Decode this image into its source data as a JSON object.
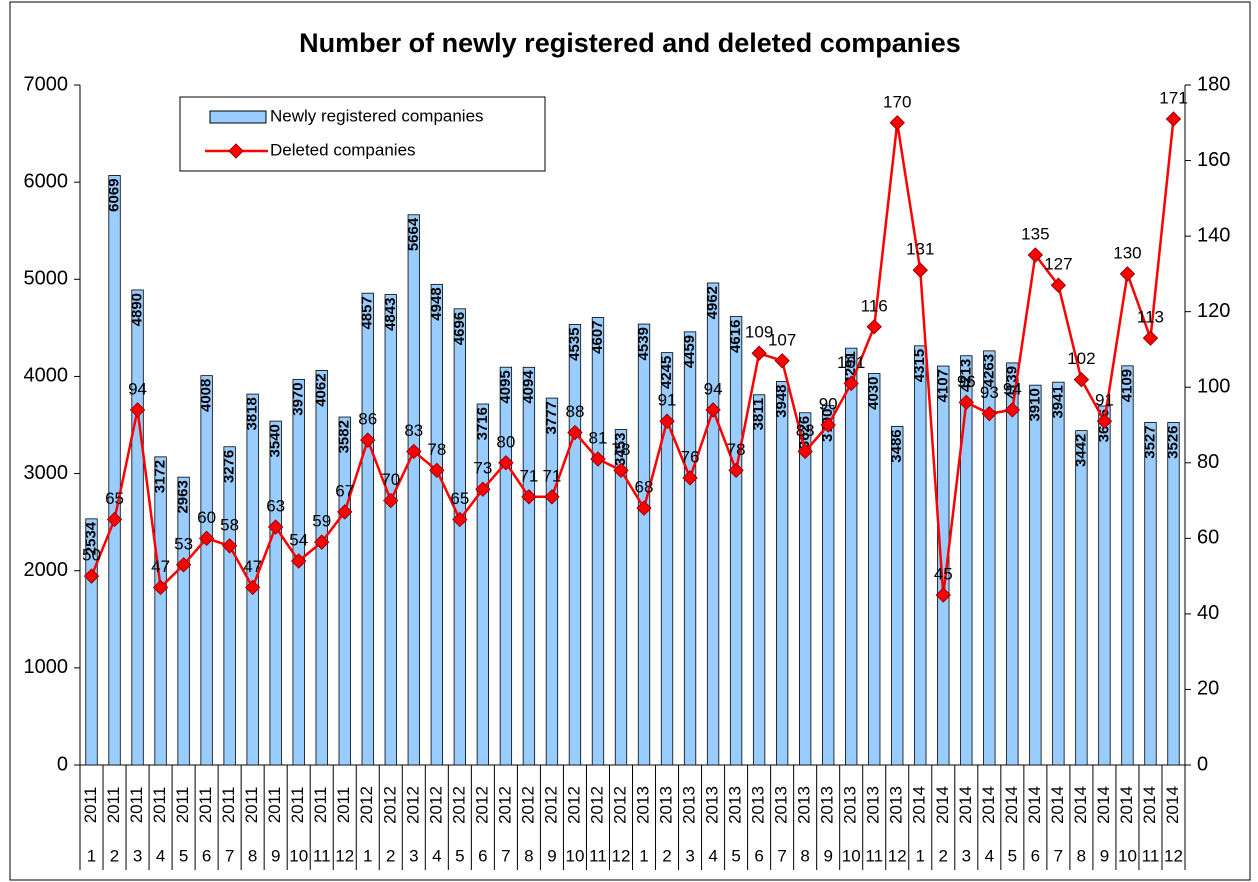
{
  "chart_data": {
    "type": "combo",
    "title": "Number of newly registered and deleted companies",
    "categories": [
      [
        "2011",
        "1"
      ],
      [
        "2011",
        "2"
      ],
      [
        "2011",
        "3"
      ],
      [
        "2011",
        "4"
      ],
      [
        "2011",
        "5"
      ],
      [
        "2011",
        "6"
      ],
      [
        "2011",
        "7"
      ],
      [
        "2011",
        "8"
      ],
      [
        "2011",
        "9"
      ],
      [
        "2011",
        "10"
      ],
      [
        "2011",
        "11"
      ],
      [
        "2011",
        "12"
      ],
      [
        "2012",
        "1"
      ],
      [
        "2012",
        "2"
      ],
      [
        "2012",
        "3"
      ],
      [
        "2012",
        "4"
      ],
      [
        "2012",
        "5"
      ],
      [
        "2012",
        "6"
      ],
      [
        "2012",
        "7"
      ],
      [
        "2012",
        "8"
      ],
      [
        "2012",
        "9"
      ],
      [
        "2012",
        "10"
      ],
      [
        "2012",
        "11"
      ],
      [
        "2012",
        "12"
      ],
      [
        "2013",
        "1"
      ],
      [
        "2013",
        "2"
      ],
      [
        "2013",
        "3"
      ],
      [
        "2013",
        "4"
      ],
      [
        "2013",
        "5"
      ],
      [
        "2013",
        "6"
      ],
      [
        "2013",
        "7"
      ],
      [
        "2013",
        "8"
      ],
      [
        "2013",
        "9"
      ],
      [
        "2013",
        "10"
      ],
      [
        "2013",
        "11"
      ],
      [
        "2013",
        "12"
      ],
      [
        "2014",
        "1"
      ],
      [
        "2014",
        "2"
      ],
      [
        "2014",
        "3"
      ],
      [
        "2014",
        "4"
      ],
      [
        "2014",
        "5"
      ],
      [
        "2014",
        "6"
      ],
      [
        "2014",
        "7"
      ],
      [
        "2014",
        "8"
      ],
      [
        "2014",
        "9"
      ],
      [
        "2014",
        "10"
      ],
      [
        "2014",
        "11"
      ],
      [
        "2014",
        "12"
      ]
    ],
    "series": [
      {
        "name": "Newly registered companies",
        "type": "bar",
        "color": "#99ccff",
        "values": [
          2534,
          6069,
          4890,
          3172,
          2963,
          4008,
          3276,
          3818,
          3540,
          3970,
          4062,
          3582,
          4857,
          4843,
          5664,
          4948,
          4696,
          3716,
          4095,
          4094,
          3777,
          4535,
          4607,
          3453,
          4539,
          4245,
          4459,
          4962,
          4616,
          3811,
          3948,
          3626,
          3700,
          4291,
          4030,
          3486,
          4315,
          4107,
          4213,
          4263,
          4139,
          3910,
          3941,
          3442,
          3696,
          4109,
          3527,
          3526
        ]
      },
      {
        "name": "Deleted companies",
        "type": "line",
        "axis": "y2",
        "color": "#ff0000",
        "values": [
          50,
          65,
          94,
          47,
          53,
          60,
          58,
          47,
          63,
          54,
          59,
          67,
          86,
          70,
          83,
          78,
          65,
          73,
          80,
          71,
          71,
          88,
          81,
          78,
          68,
          91,
          76,
          94,
          78,
          109,
          107,
          83,
          90,
          101,
          116,
          170,
          131,
          45,
          96,
          93,
          94,
          135,
          127,
          102,
          91,
          130,
          113,
          171
        ]
      }
    ],
    "ylim": [
      0,
      7000
    ],
    "yticks": [
      0,
      1000,
      2000,
      3000,
      4000,
      5000,
      6000,
      7000
    ],
    "y2lim": [
      0,
      180
    ],
    "y2ticks": [
      0,
      20,
      40,
      60,
      80,
      100,
      120,
      140,
      160,
      180
    ],
    "legend": "top-left",
    "data_labels": true
  }
}
